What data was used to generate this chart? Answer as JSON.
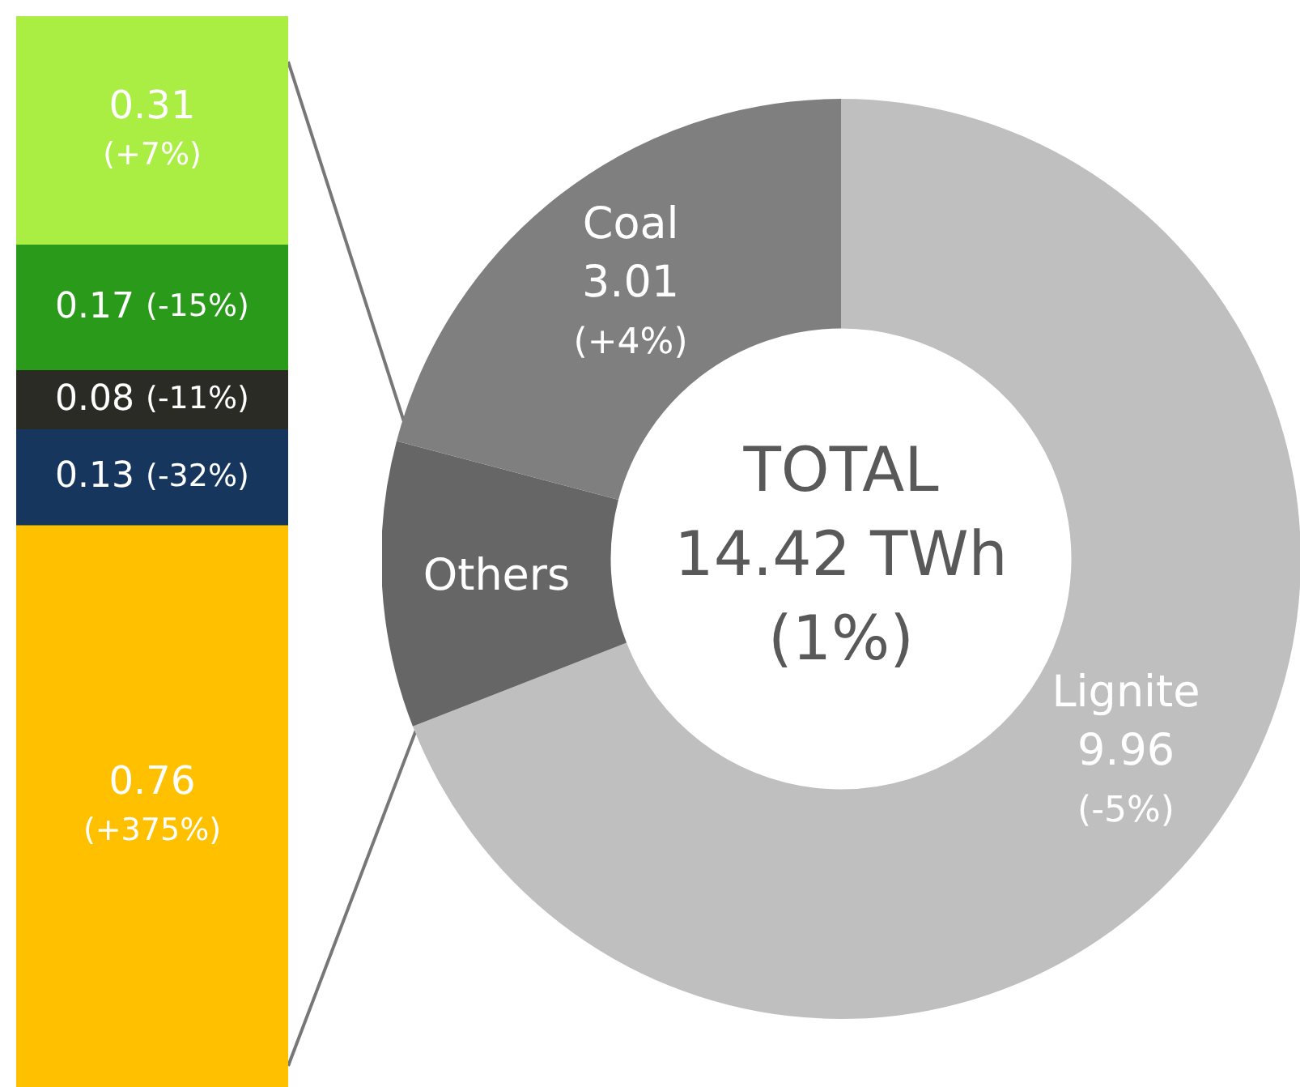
{
  "chart_data": [
    {
      "type": "bar",
      "stacked": true,
      "tick_labels": false,
      "categories": [
        null
      ],
      "series": [
        {
          "color": "#ffc000",
          "values": [
            0.76
          ],
          "value_labels": [
            "0.76 (+375%)"
          ]
        },
        {
          "color": "#17365d",
          "values": [
            0.13
          ],
          "value_labels": [
            "0.13 (-32%)"
          ]
        },
        {
          "color": "#2b2b26",
          "values": [
            0.08
          ],
          "value_labels": [
            "0.08 (-11%)"
          ]
        },
        {
          "color": "#2a9a1a",
          "values": [
            0.17
          ],
          "value_labels": [
            "0.17 (-15%)"
          ]
        },
        {
          "color": "#aaee44",
          "values": [
            0.31
          ],
          "value_labels": [
            "0.31 (+7%)"
          ]
        }
      ]
    },
    {
      "type": "donut",
      "categories": [
        "Lignite",
        "Others",
        "Coal"
      ],
      "values": [
        9.96,
        1.45,
        3.01
      ],
      "colors": [
        "#bfbfbf",
        "#666666",
        "#7f7f7f"
      ],
      "value_labels": [
        "9.96 (-5%)",
        null,
        "3.01 (+4%)"
      ],
      "annotations": [
        "TOTAL",
        "14.42 TWh",
        "(1%)"
      ]
    }
  ]
}
